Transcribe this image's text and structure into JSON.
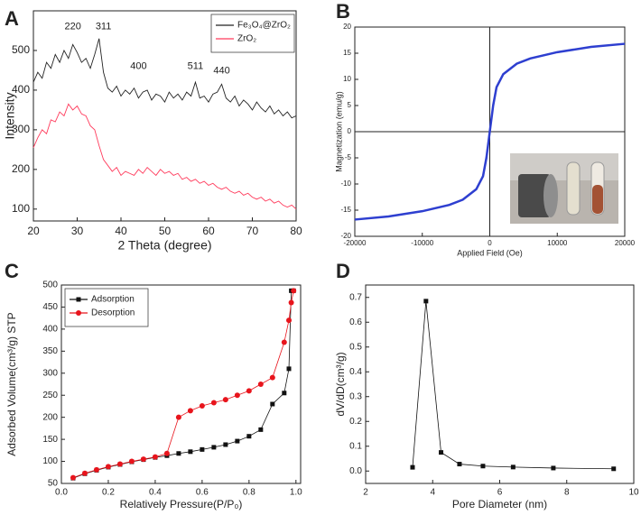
{
  "chart_data": [
    {
      "type": "line",
      "title": "A",
      "xlabel": "2 Theta (degree)",
      "ylabel": "Intensity",
      "xlim": [
        20,
        80
      ],
      "xticks": [
        20,
        30,
        40,
        50,
        60,
        70,
        80
      ],
      "ylim": [
        70,
        600
      ],
      "yticks": [
        100,
        200,
        300,
        400,
        500
      ],
      "legend": "upper right",
      "x": [
        20,
        21,
        22,
        23,
        24,
        25,
        26,
        27,
        28,
        29,
        30,
        31,
        32,
        33,
        34,
        35,
        36,
        37,
        38,
        39,
        40,
        41,
        42,
        43,
        44,
        45,
        46,
        47,
        48,
        49,
        50,
        51,
        52,
        53,
        54,
        55,
        56,
        57,
        58,
        59,
        60,
        61,
        62,
        63,
        64,
        65,
        66,
        67,
        68,
        69,
        70,
        71,
        72,
        73,
        74,
        75,
        76,
        77,
        78,
        79,
        80
      ],
      "series": [
        {
          "name": "Fe₃O₄@ZrO₂",
          "color": "#222222",
          "values": [
            420,
            445,
            430,
            470,
            455,
            490,
            470,
            500,
            480,
            515,
            495,
            470,
            480,
            455,
            490,
            530,
            445,
            405,
            395,
            410,
            385,
            400,
            390,
            405,
            380,
            395,
            400,
            375,
            390,
            385,
            370,
            395,
            380,
            390,
            375,
            395,
            385,
            420,
            380,
            385,
            370,
            390,
            395,
            415,
            380,
            370,
            385,
            360,
            375,
            365,
            350,
            370,
            355,
            345,
            360,
            340,
            350,
            335,
            345,
            330,
            335
          ]
        },
        {
          "name": "ZrO₂",
          "color": "#ff3b5c",
          "values": [
            255,
            280,
            300,
            290,
            325,
            320,
            345,
            335,
            365,
            350,
            360,
            340,
            335,
            310,
            300,
            260,
            225,
            210,
            195,
            205,
            185,
            195,
            190,
            185,
            200,
            190,
            205,
            195,
            185,
            200,
            190,
            195,
            185,
            190,
            175,
            180,
            170,
            175,
            165,
            170,
            160,
            165,
            155,
            150,
            155,
            145,
            140,
            145,
            135,
            140,
            130,
            125,
            130,
            120,
            125,
            115,
            120,
            110,
            105,
            110,
            100
          ]
        }
      ],
      "annotations": [
        {
          "label": "220",
          "x": 29,
          "y": 560
        },
        {
          "label": "311",
          "x": 36,
          "y": 560
        },
        {
          "label": "400",
          "x": 44,
          "y": 460
        },
        {
          "label": "511",
          "x": 57,
          "y": 460
        },
        {
          "label": "440",
          "x": 63,
          "y": 449
        }
      ]
    },
    {
      "type": "line",
      "title": "B",
      "xlabel": "Applied Field (Oe)",
      "ylabel": "Magnetization (emu/g)",
      "xlim": [
        -20000,
        20000
      ],
      "xticks": [
        -20000,
        -10000,
        0,
        10000,
        20000
      ],
      "ylim": [
        -20,
        20
      ],
      "yticks": [
        -20,
        -15,
        -10,
        -5,
        0,
        5,
        10,
        15,
        20
      ],
      "zero_lines": true,
      "x": [
        -20000,
        -15000,
        -10000,
        -6000,
        -4000,
        -2000,
        -1000,
        -500,
        -200,
        0,
        200,
        500,
        1000,
        2000,
        4000,
        6000,
        10000,
        15000,
        20000
      ],
      "series": [
        {
          "color": "#2e3fd0",
          "values": [
            -16.8,
            -16.2,
            -15.2,
            -14,
            -13,
            -11,
            -8.5,
            -5,
            -2,
            0,
            2,
            5,
            8.5,
            11,
            13,
            14,
            15.2,
            16.2,
            16.8
          ]
        }
      ]
    },
    {
      "type": "line",
      "title": "C",
      "xlabel": "Relatively Pressure(P/P₀)",
      "ylabel": "Adsorbed Volume(cm³/g) STP",
      "xlim": [
        0,
        1.02
      ],
      "xticks": [
        {
          "value": 0,
          "label": "0.0"
        },
        0.2,
        0.4,
        0.6,
        0.8,
        {
          "value": 1,
          "label": "1.0"
        }
      ],
      "ylim": [
        50,
        500
      ],
      "yticks": [
        50,
        100,
        150,
        200,
        250,
        300,
        350,
        400,
        450,
        500
      ],
      "legend": "upper left",
      "series": [
        {
          "name": "Adsorption",
          "color": "#111111",
          "marker": "square",
          "x": [
            0.05,
            0.1,
            0.15,
            0.2,
            0.25,
            0.3,
            0.35,
            0.4,
            0.45,
            0.5,
            0.55,
            0.6,
            0.65,
            0.7,
            0.75,
            0.8,
            0.85,
            0.9,
            0.95,
            0.97,
            0.98,
            0.99
          ],
          "values": [
            62,
            72,
            80,
            87,
            93,
            99,
            104,
            109,
            113,
            118,
            122,
            127,
            132,
            138,
            146,
            157,
            172,
            230,
            255,
            310,
            487,
            487
          ]
        },
        {
          "name": "Desorption",
          "color": "#e8141c",
          "marker": "circle",
          "x": [
            0.99,
            0.98,
            0.97,
            0.95,
            0.9,
            0.85,
            0.8,
            0.75,
            0.7,
            0.65,
            0.6,
            0.55,
            0.5,
            0.45,
            0.4,
            0.35,
            0.3,
            0.25,
            0.2,
            0.15,
            0.1,
            0.05
          ],
          "values": [
            487,
            460,
            420,
            370,
            290,
            275,
            260,
            250,
            240,
            233,
            226,
            215,
            200,
            118,
            110,
            105,
            100,
            94,
            88,
            81,
            73,
            63
          ]
        }
      ]
    },
    {
      "type": "line",
      "title": "D",
      "xlabel": "Pore Diameter (nm)",
      "ylabel": "dV/dD(cm³/g)",
      "xlim": [
        2,
        10
      ],
      "xticks": [
        2,
        4,
        6,
        8,
        10
      ],
      "ylim": [
        -0.05,
        0.75
      ],
      "yticks": [
        {
          "value": 0,
          "label": "0.0"
        },
        0.1,
        0.2,
        0.3,
        0.4,
        0.5,
        0.6,
        0.7
      ],
      "series": [
        {
          "color": "#111111",
          "marker": "square",
          "x": [
            3.4,
            3.8,
            4.25,
            4.8,
            5.5,
            6.4,
            7.6,
            9.4
          ],
          "values": [
            0.015,
            0.685,
            0.075,
            0.028,
            0.02,
            0.016,
            0.012,
            0.009
          ]
        }
      ]
    }
  ]
}
